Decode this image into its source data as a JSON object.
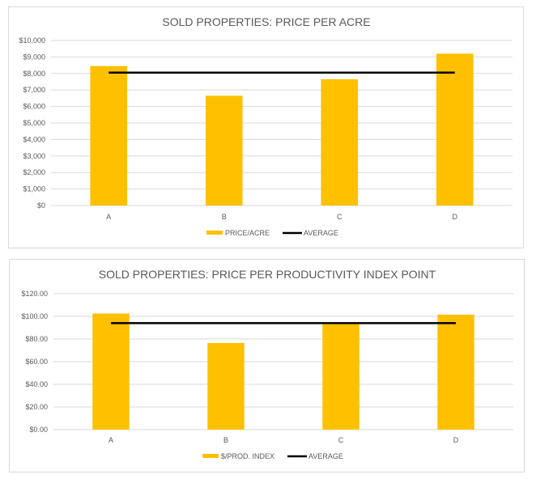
{
  "chart_data": [
    {
      "type": "bar",
      "title": "SOLD PROPERTIES: PRICE PER ACRE",
      "categories": [
        "A",
        "B",
        "C",
        "D"
      ],
      "series": [
        {
          "name": "PRICE/ACRE",
          "kind": "bar",
          "color": "#FFC000",
          "values": [
            8450,
            6650,
            7650,
            9200
          ]
        },
        {
          "name": "AVERAGE",
          "kind": "line",
          "color": "#000000",
          "values": [
            8050,
            8050,
            8050,
            8050
          ]
        }
      ],
      "yticks": [
        "$0",
        "$1,000",
        "$2,000",
        "$3,000",
        "$4,000",
        "$5,000",
        "$6,000",
        "$7,000",
        "$8,000",
        "$9,000",
        "$10,000"
      ],
      "ylim": [
        0,
        10000
      ],
      "grid": true,
      "legend_position": "bottom"
    },
    {
      "type": "bar",
      "title": "SOLD PROPERTIES: PRICE PER PRODUCTIVITY INDEX  POINT",
      "categories": [
        "A",
        "B",
        "C",
        "D"
      ],
      "series": [
        {
          "name": "$/PROD. INDEX",
          "kind": "bar",
          "color": "#FFC000",
          "values": [
            102.5,
            76.5,
            93.5,
            101.5
          ]
        },
        {
          "name": "AVERAGE",
          "kind": "line",
          "color": "#000000",
          "values": [
            94,
            94,
            94,
            94
          ]
        }
      ],
      "yticks": [
        "$0.00",
        "$20.00",
        "$40.00",
        "$60.00",
        "$80.00",
        "$100.00",
        "$120.00"
      ],
      "ylim": [
        0,
        120
      ],
      "grid": true,
      "legend_position": "bottom"
    }
  ]
}
